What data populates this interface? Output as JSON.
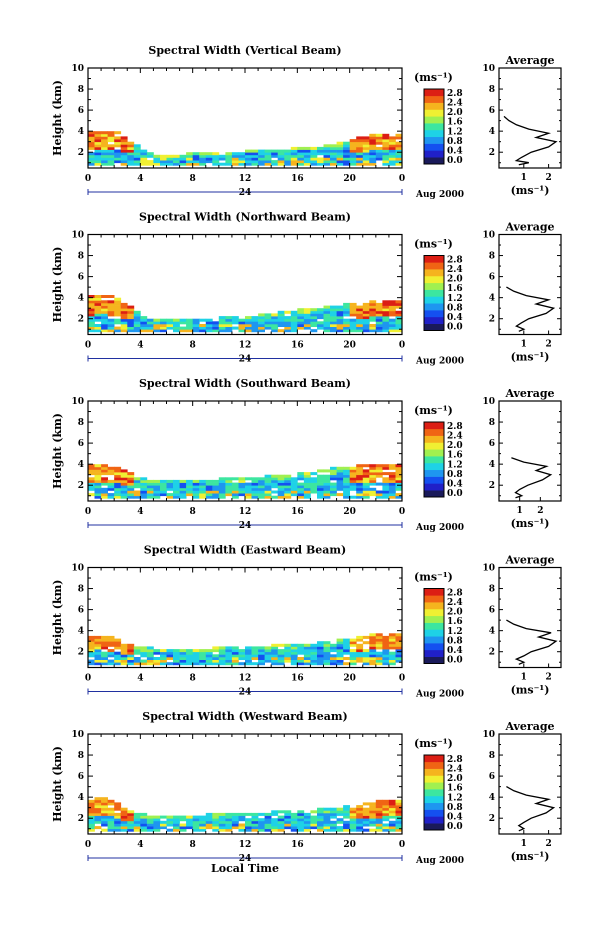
{
  "chart_data": {
    "type": "heatmap",
    "xlabel": "Local Time",
    "date_label": "Aug 2000",
    "day_label": "24",
    "ylabel": "Height (km)",
    "x_ticks": [
      "0",
      "4",
      "8",
      "12",
      "16",
      "20",
      "0"
    ],
    "y_ticks": [
      "2",
      "4",
      "6",
      "8",
      "10"
    ],
    "xlim": [
      0,
      24
    ],
    "ylim": [
      0.5,
      10
    ],
    "colorbar": {
      "unit": "(ms⁻¹)",
      "ticks": [
        "0.0",
        "0.4",
        "0.8",
        "1.2",
        "1.6",
        "2.0",
        "2.4",
        "2.8"
      ],
      "range": [
        0,
        2.8
      ],
      "colors": [
        "#1a1a5a",
        "#2020c8",
        "#1450f0",
        "#1e96f0",
        "#1ed2e6",
        "#3ce6a0",
        "#a0f050",
        "#f0f032",
        "#f5b41e",
        "#f06414",
        "#dc1e14"
      ]
    },
    "profile_title": "Average",
    "profile_xlabel": "(ms⁻¹)",
    "panels": [
      {
        "title": "Spectral Width (Vertical Beam)",
        "profile_x_ticks": [
          "1",
          "2"
        ],
        "profile_xlim": [
          0,
          2.5
        ],
        "top_height": [
          [
            0,
            3.8
          ],
          [
            1,
            4.0
          ],
          [
            2,
            4.0
          ],
          [
            3,
            3.2
          ],
          [
            4,
            2.4
          ],
          [
            5,
            1.6
          ],
          [
            6,
            1.6
          ],
          [
            8,
            1.8
          ],
          [
            10,
            1.9
          ],
          [
            12,
            2.0
          ],
          [
            14,
            2.1
          ],
          [
            16,
            2.3
          ],
          [
            18,
            2.5
          ],
          [
            20,
            3.0
          ],
          [
            21,
            3.4
          ],
          [
            22,
            3.6
          ],
          [
            23,
            3.6
          ],
          [
            24,
            3.6
          ]
        ],
        "avg_profile": [
          [
            0.8,
            0.8
          ],
          [
            1.0,
            1.2
          ],
          [
            1.2,
            0.7
          ],
          [
            1.5,
            0.9
          ],
          [
            2.0,
            1.3
          ],
          [
            2.5,
            2.0
          ],
          [
            3.0,
            2.3
          ],
          [
            3.4,
            1.5
          ],
          [
            3.8,
            2.0
          ],
          [
            4.2,
            1.2
          ],
          [
            4.6,
            0.7
          ],
          [
            5.0,
            0.4
          ],
          [
            5.4,
            0.2
          ]
        ]
      },
      {
        "title": "Spectral Width (Northward Beam)",
        "profile_x_ticks": [
          "1",
          "2"
        ],
        "profile_xlim": [
          0,
          2.5
        ],
        "top_height": [
          [
            0,
            4.0
          ],
          [
            1,
            4.2
          ],
          [
            2,
            4.0
          ],
          [
            3,
            3.3
          ],
          [
            4,
            2.3
          ],
          [
            5,
            1.9
          ],
          [
            6,
            1.9
          ],
          [
            8,
            2.0
          ],
          [
            10,
            2.0
          ],
          [
            12,
            2.1
          ],
          [
            14,
            2.4
          ],
          [
            16,
            2.8
          ],
          [
            18,
            3.0
          ],
          [
            20,
            3.3
          ],
          [
            22,
            3.6
          ],
          [
            24,
            3.6
          ]
        ],
        "avg_profile": [
          [
            0.8,
            0.8
          ],
          [
            1.0,
            1.0
          ],
          [
            1.3,
            0.7
          ],
          [
            1.6,
            0.9
          ],
          [
            2.0,
            1.2
          ],
          [
            2.5,
            1.9
          ],
          [
            3.0,
            2.2
          ],
          [
            3.4,
            1.5
          ],
          [
            3.8,
            2.0
          ],
          [
            4.2,
            1.1
          ],
          [
            4.6,
            0.6
          ],
          [
            5.0,
            0.3
          ]
        ]
      },
      {
        "title": "Spectral Width (Southward Beam)",
        "profile_x_ticks": [
          "1",
          "2"
        ],
        "profile_xlim": [
          0,
          3
        ],
        "top_height": [
          [
            0,
            3.7
          ],
          [
            1,
            4.0
          ],
          [
            2,
            3.8
          ],
          [
            3,
            3.2
          ],
          [
            4,
            2.6
          ],
          [
            5,
            2.4
          ],
          [
            6,
            2.3
          ],
          [
            8,
            2.4
          ],
          [
            10,
            2.5
          ],
          [
            12,
            2.6
          ],
          [
            14,
            2.8
          ],
          [
            16,
            3.0
          ],
          [
            18,
            3.4
          ],
          [
            20,
            3.7
          ],
          [
            22,
            3.9
          ],
          [
            24,
            3.9
          ]
        ],
        "avg_profile": [
          [
            0.8,
            0.8
          ],
          [
            1.0,
            1.1
          ],
          [
            1.3,
            0.8
          ],
          [
            1.6,
            1.0
          ],
          [
            2.0,
            1.4
          ],
          [
            2.5,
            2.1
          ],
          [
            3.0,
            2.5
          ],
          [
            3.4,
            1.8
          ],
          [
            3.8,
            2.3
          ],
          [
            4.2,
            1.2
          ],
          [
            4.6,
            0.6
          ]
        ]
      },
      {
        "title": "Spectral Width (Eastward Beam)",
        "profile_x_ticks": [
          "1",
          "2"
        ],
        "profile_xlim": [
          0,
          2.5
        ],
        "top_height": [
          [
            0,
            3.4
          ],
          [
            1,
            3.6
          ],
          [
            2,
            3.2
          ],
          [
            3,
            2.6
          ],
          [
            4,
            2.3
          ],
          [
            6,
            2.2
          ],
          [
            8,
            2.2
          ],
          [
            10,
            2.3
          ],
          [
            12,
            2.4
          ],
          [
            14,
            2.5
          ],
          [
            16,
            2.6
          ],
          [
            18,
            2.8
          ],
          [
            20,
            3.2
          ],
          [
            22,
            3.6
          ],
          [
            24,
            3.6
          ]
        ],
        "avg_profile": [
          [
            0.8,
            0.8
          ],
          [
            1.0,
            1.0
          ],
          [
            1.3,
            0.7
          ],
          [
            1.6,
            1.0
          ],
          [
            2.0,
            1.3
          ],
          [
            2.5,
            2.0
          ],
          [
            3.0,
            2.3
          ],
          [
            3.4,
            1.6
          ],
          [
            3.8,
            2.1
          ],
          [
            4.2,
            1.1
          ],
          [
            4.6,
            0.6
          ],
          [
            5.0,
            0.3
          ]
        ]
      },
      {
        "title": "Spectral Width (Westward Beam)",
        "profile_x_ticks": [
          "1",
          "2"
        ],
        "profile_xlim": [
          0,
          2.5
        ],
        "top_height": [
          [
            0,
            3.6
          ],
          [
            1,
            3.9
          ],
          [
            2,
            3.6
          ],
          [
            3,
            2.7
          ],
          [
            4,
            2.3
          ],
          [
            6,
            2.2
          ],
          [
            8,
            2.2
          ],
          [
            10,
            2.3
          ],
          [
            12,
            2.4
          ],
          [
            14,
            2.5
          ],
          [
            16,
            2.6
          ],
          [
            18,
            2.8
          ],
          [
            20,
            3.1
          ],
          [
            22,
            3.5
          ],
          [
            24,
            3.6
          ]
        ],
        "avg_profile": [
          [
            0.8,
            0.8
          ],
          [
            1.0,
            1.0
          ],
          [
            1.3,
            0.8
          ],
          [
            1.6,
            1.0
          ],
          [
            2.0,
            1.3
          ],
          [
            2.5,
            1.9
          ],
          [
            3.0,
            2.2
          ],
          [
            3.4,
            1.5
          ],
          [
            3.8,
            2.0
          ],
          [
            4.2,
            1.1
          ],
          [
            4.6,
            0.6
          ],
          [
            5.0,
            0.3
          ]
        ]
      }
    ]
  }
}
